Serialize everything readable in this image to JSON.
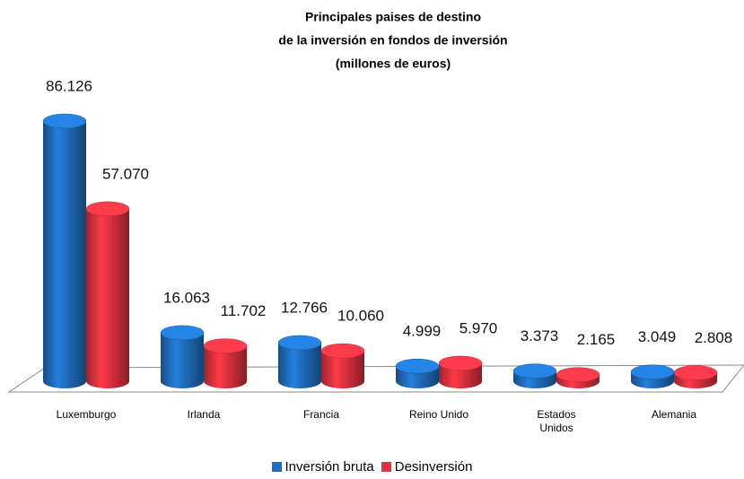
{
  "chart_data": {
    "type": "bar3d",
    "title": [
      "Principales paises de destino",
      "de la inversión en fondos de inversión",
      "(millones de euros)"
    ],
    "categories": [
      "Luxemburgo",
      "Irlanda",
      "Francia",
      "Reino Unido",
      "Estados Unidos",
      "Alemania"
    ],
    "series": [
      {
        "name": "Inversión bruta",
        "color": "#1f6fc0",
        "values": [
          86126,
          16063,
          12766,
          4999,
          3373,
          3049
        ],
        "value_labels": [
          "86.126",
          "16.063",
          "12.766",
          "4.999",
          "3.373",
          "3.049"
        ]
      },
      {
        "name": "Desinversión",
        "color": "#e2323f",
        "values": [
          57070,
          11702,
          10060,
          5970,
          2165,
          2808
        ],
        "value_labels": [
          "57.070",
          "11.702",
          "10.060",
          "5.970",
          "2.165",
          "2.808"
        ]
      }
    ]
  }
}
